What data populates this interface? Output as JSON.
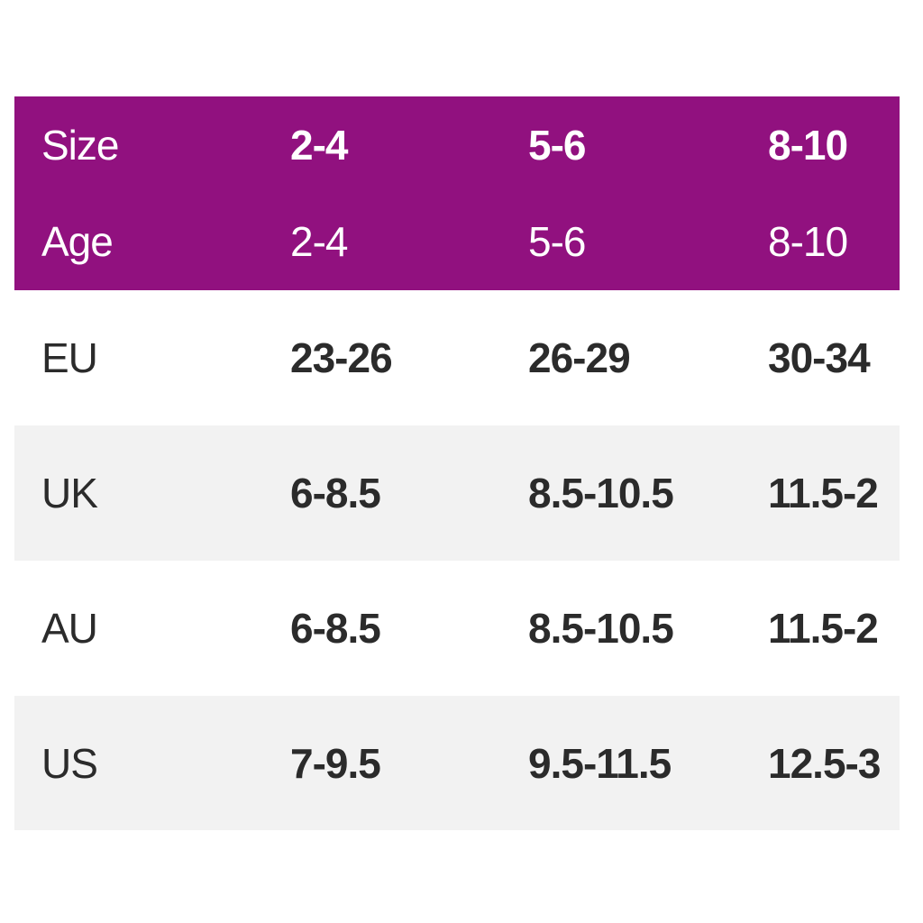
{
  "colors": {
    "header_bg": "#91117f",
    "header_text": "#ffffff",
    "row_bg": "#ffffff",
    "row_alt_bg": "#f2f2f2",
    "body_text": "#2b2b2b"
  },
  "size_chart": {
    "rows": [
      {
        "label": "Size",
        "values": [
          "2-4",
          "5-6",
          "8-10"
        ]
      },
      {
        "label": "Age",
        "values": [
          "2-4",
          "5-6",
          "8-10"
        ]
      },
      {
        "label": "EU",
        "values": [
          "23-26",
          "26-29",
          "30-34"
        ]
      },
      {
        "label": "UK",
        "values": [
          "6-8.5",
          "8.5-10.5",
          "11.5-2"
        ]
      },
      {
        "label": "AU",
        "values": [
          "6-8.5",
          "8.5-10.5",
          "11.5-2"
        ]
      },
      {
        "label": "US",
        "values": [
          "7-9.5",
          "9.5-11.5",
          "12.5-3"
        ]
      }
    ]
  },
  "chart_data": {
    "type": "table",
    "columns": [
      "Size",
      "2-4",
      "5-6",
      "8-10"
    ],
    "rows": [
      [
        "Age",
        "2-4",
        "5-6",
        "8-10"
      ],
      [
        "EU",
        "23-26",
        "26-29",
        "30-34"
      ],
      [
        "UK",
        "6-8.5",
        "8.5-10.5",
        "11.5-2"
      ],
      [
        "AU",
        "6-8.5",
        "8.5-10.5",
        "11.5-2"
      ],
      [
        "US",
        "7-9.5",
        "9.5-11.5",
        "12.5-3"
      ]
    ]
  }
}
